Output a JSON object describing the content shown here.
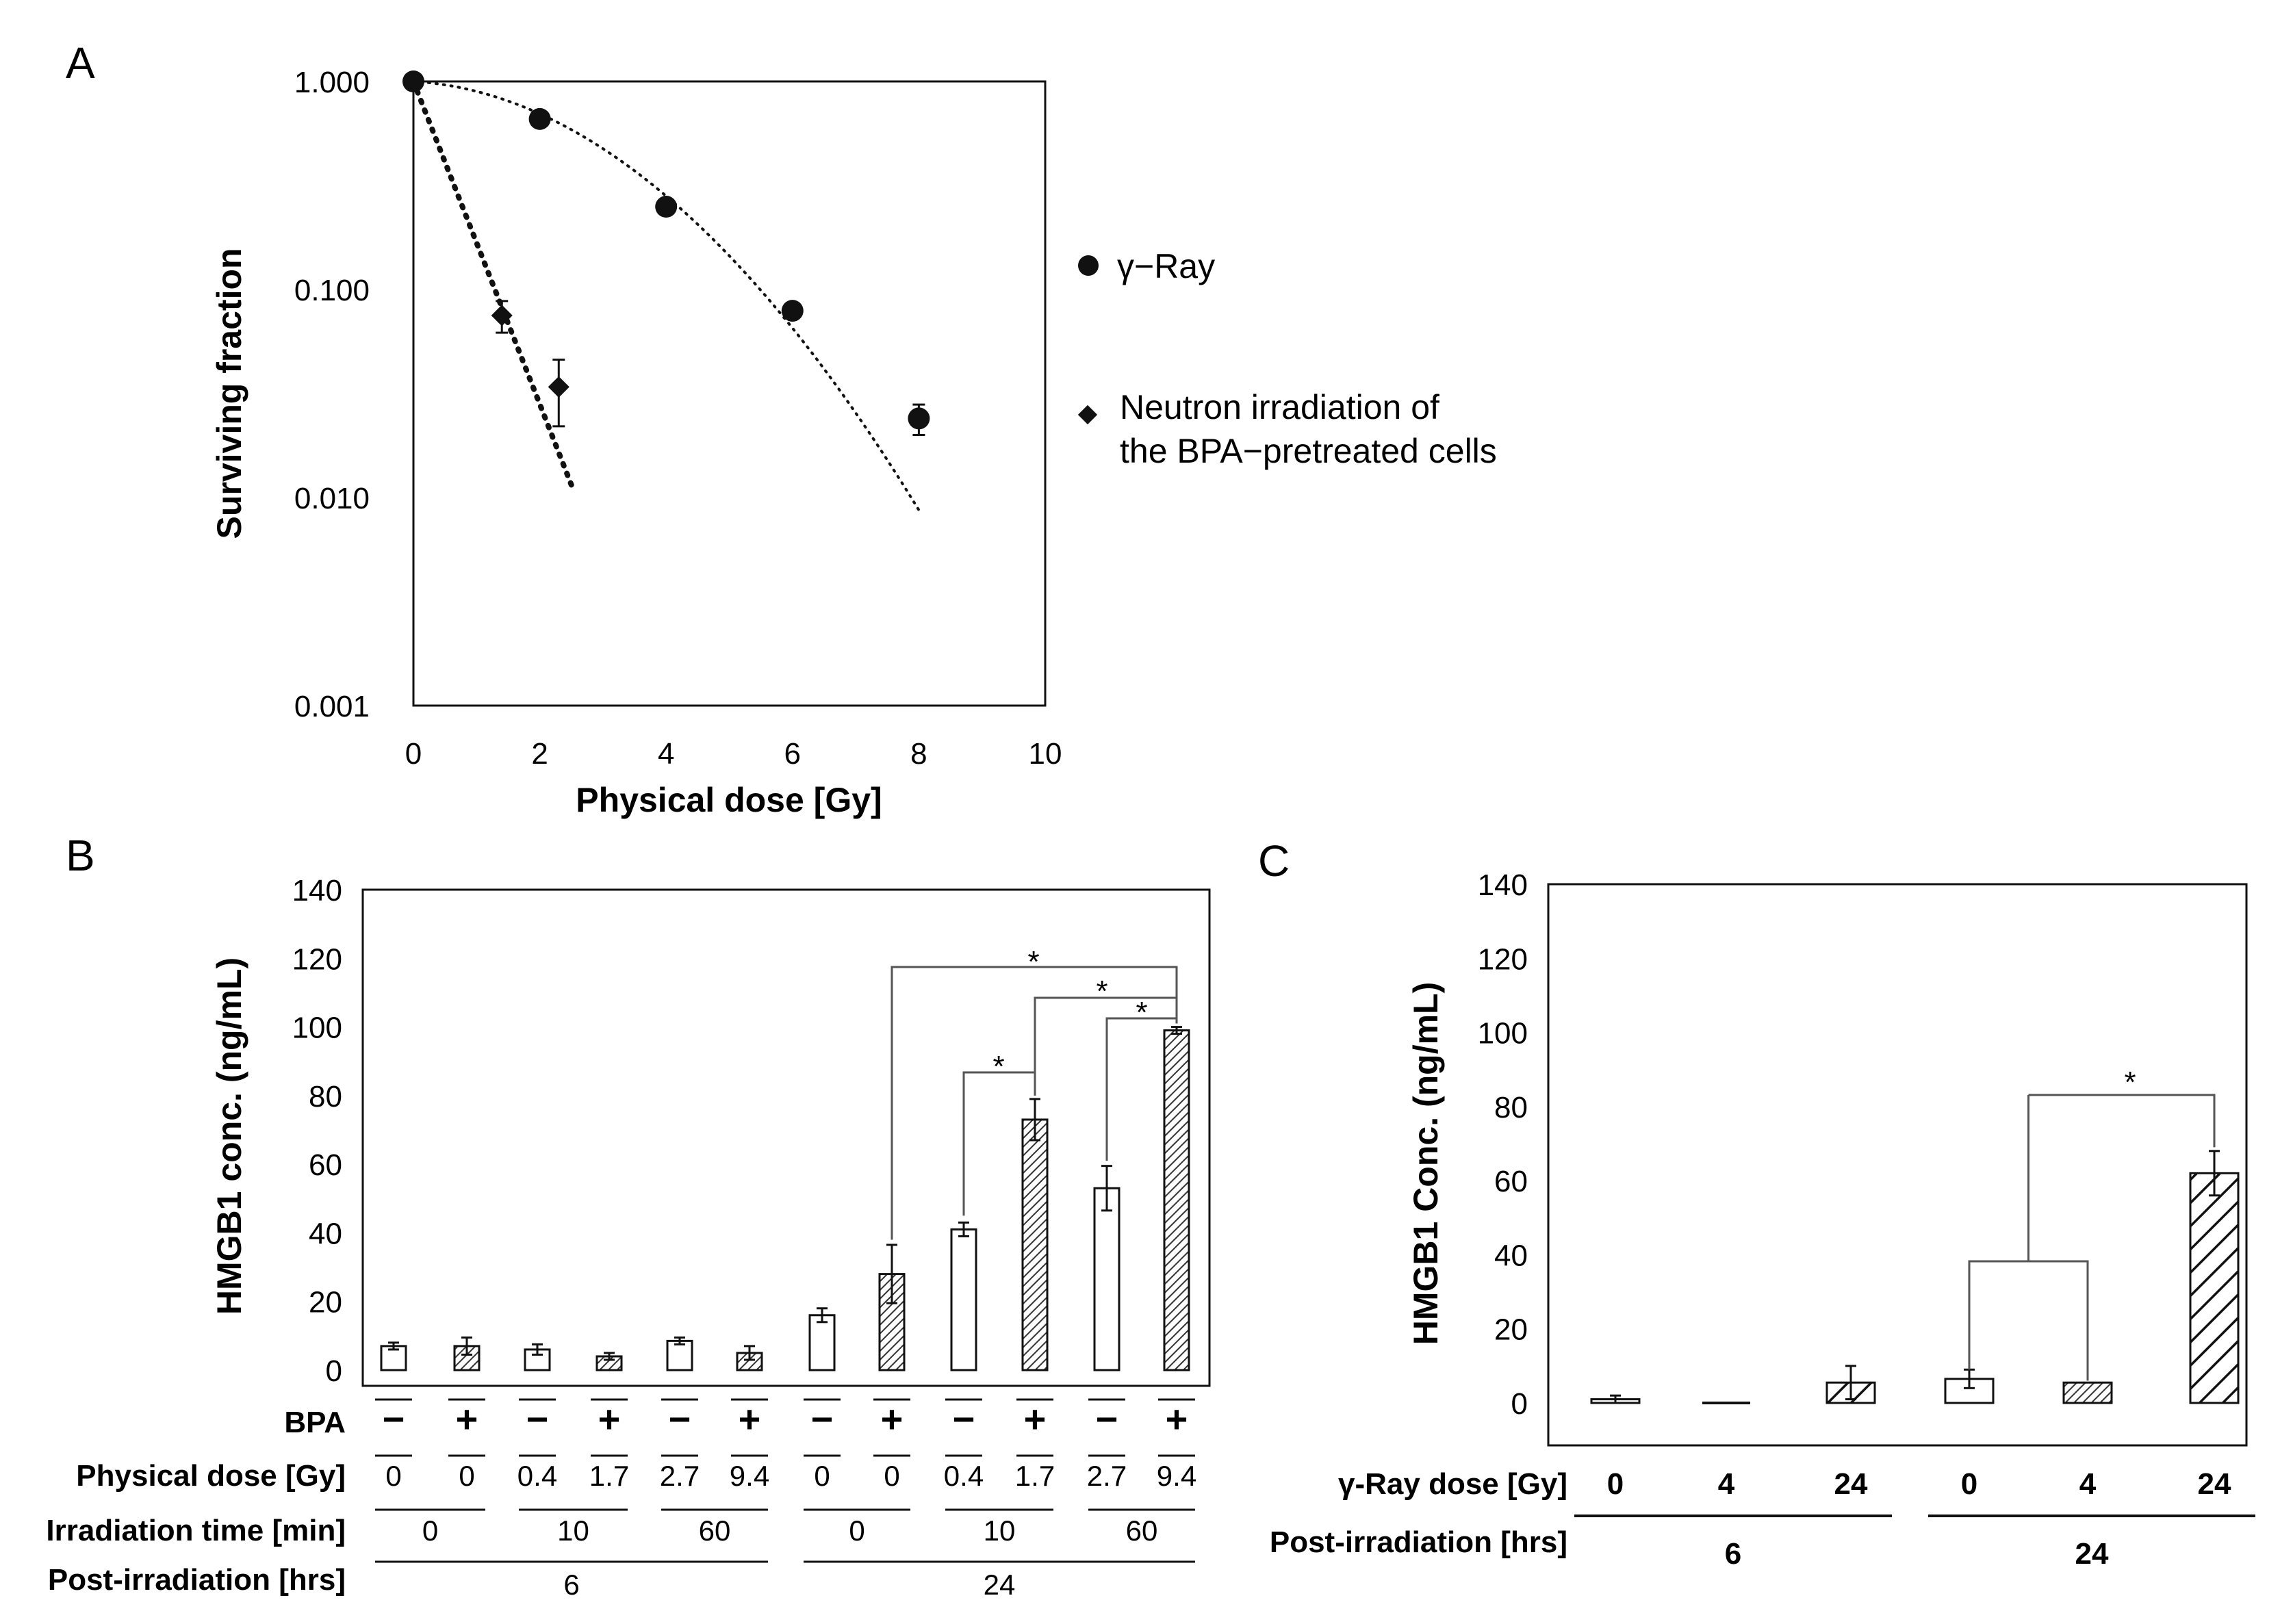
{
  "panel_labels": {
    "a": "A",
    "b": "B",
    "c": "C"
  },
  "chart_data": [
    {
      "id": "A",
      "type": "scatter",
      "xlabel": "Physical dose [Gy]",
      "ylabel": "Surviving fraction",
      "xlim": [
        0,
        10
      ],
      "ylim": [
        0.001,
        1
      ],
      "yscale": "log",
      "x_ticks": [
        "0",
        "2",
        "4",
        "6",
        "8",
        "10"
      ],
      "y_ticks": [
        "1.000",
        "0.100",
        "0.010",
        "0.001"
      ],
      "series": [
        {
          "name": "γ−Ray",
          "marker": "circle",
          "points": [
            {
              "x": 0,
              "y": 1.0,
              "err": 0.07
            },
            {
              "x": 2,
              "y": 0.66,
              "err": 0.04
            },
            {
              "x": 4,
              "y": 0.25,
              "err": 0.02
            },
            {
              "x": 6,
              "y": 0.079,
              "err": 0.006
            },
            {
              "x": 8,
              "y": 0.024,
              "err": 0.004
            }
          ],
          "fit": {
            "style": "dotted",
            "x0": 0,
            "x1": 8
          }
        },
        {
          "name": "Neutron irradiation of the BPA−pretreated cells",
          "name_line1": "Neutron irradiation of",
          "name_line2": "the BPA−pretreated cells",
          "marker": "diamond",
          "points": [
            {
              "x": 0,
              "y": 1.0,
              "err": 0.07
            },
            {
              "x": 1.4,
              "y": 0.075,
              "err": 0.013
            },
            {
              "x": 2.3,
              "y": 0.034,
              "err": 0.012
            }
          ],
          "fit": {
            "style": "dotted-bold",
            "x0": 0,
            "x1": 2.5
          }
        }
      ],
      "legend": "right"
    },
    {
      "id": "B",
      "type": "bar",
      "ylabel": "HMGB1 conc. (ng/mL)",
      "ylim": [
        0,
        140
      ],
      "y_ticks": [
        "0",
        "20",
        "40",
        "60",
        "80",
        "100",
        "120",
        "140"
      ],
      "values": [
        7,
        7,
        6,
        4,
        8.5,
        5,
        16,
        28,
        41,
        73,
        53,
        99
      ],
      "errors": [
        1,
        2.5,
        1.5,
        1,
        1,
        2,
        2,
        8.5,
        2,
        6,
        6.5,
        1
      ],
      "fills": [
        "open",
        "hatched",
        "open",
        "hatched",
        "open",
        "hatched",
        "open",
        "hatched",
        "open",
        "hatched",
        "open",
        "hatched"
      ],
      "rows": {
        "bpa": {
          "label": "BPA",
          "values": [
            "−",
            "+",
            "−",
            "+",
            "−",
            "+",
            "−",
            "+",
            "−",
            "+",
            "−",
            "+"
          ]
        },
        "dose": {
          "label": "Physical dose [Gy]",
          "values": [
            "0",
            "0",
            "0.4",
            "1.7",
            "2.7",
            "9.4",
            "0",
            "0",
            "0.4",
            "1.7",
            "2.7",
            "9.4"
          ]
        },
        "time": {
          "label": "Irradiation time [min]",
          "groups": [
            "0",
            "10",
            "60",
            "0",
            "10",
            "60"
          ]
        },
        "post": {
          "label": "Post-irradiation [hrs]",
          "groups": [
            "6",
            "24"
          ]
        }
      },
      "significance": [
        "*",
        "*",
        "*",
        "*"
      ]
    },
    {
      "id": "C",
      "type": "bar",
      "ylabel": "HMGB1 Conc. (ng/mL)",
      "ylim": [
        0,
        140
      ],
      "y_ticks": [
        "0",
        "20",
        "40",
        "60",
        "80",
        "100",
        "120",
        "140"
      ],
      "values": [
        1,
        0,
        5.5,
        6.5,
        5.5,
        62
      ],
      "errors": [
        1,
        0,
        4.5,
        2.5,
        0,
        6
      ],
      "fills": [
        "open",
        "none",
        "hatched-wide",
        "open",
        "hatched",
        "hatched-wide"
      ],
      "rows": {
        "dose": {
          "label": "γ-Ray dose [Gy]",
          "values": [
            "0",
            "4",
            "24",
            "0",
            "4",
            "24"
          ]
        },
        "post": {
          "label": "Post-irradiation [hrs]",
          "groups": [
            "6",
            "24"
          ]
        }
      },
      "significance": [
        "*"
      ]
    }
  ]
}
